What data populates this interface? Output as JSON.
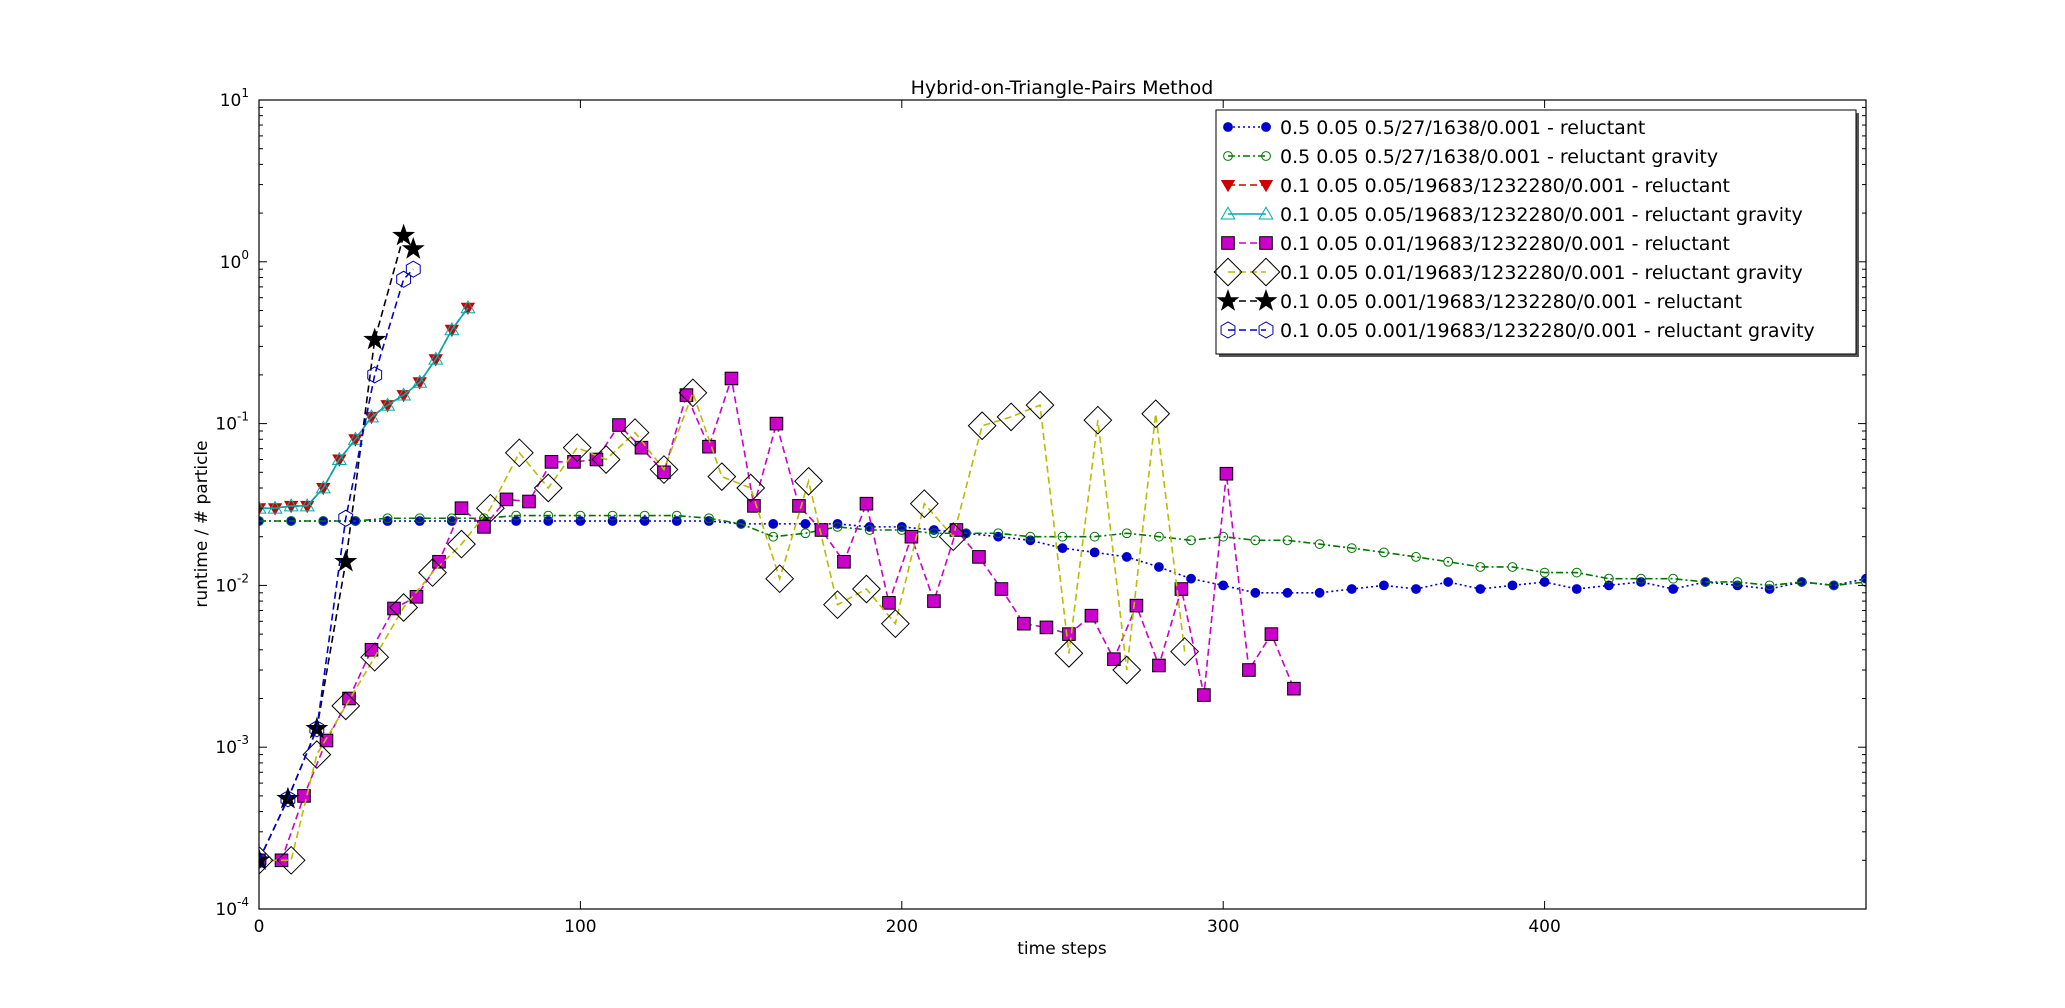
{
  "chart_data": {
    "type": "line",
    "title": "Hybrid-on-Triangle-Pairs Method",
    "xlabel": "time steps",
    "ylabel": "runtime / # particle",
    "xlim": [
      0,
      500
    ],
    "ylim": [
      0.0001,
      10
    ],
    "yscale": "log",
    "x_ticks": [
      {
        "value": 0,
        "label": "0"
      },
      {
        "value": 100,
        "label": "100"
      },
      {
        "value": 200,
        "label": "200"
      },
      {
        "value": 300,
        "label": "300"
      },
      {
        "value": 400,
        "label": "400"
      }
    ],
    "y_ticks": [
      {
        "value": 0.0001,
        "base": "10",
        "exp": "-4"
      },
      {
        "value": 0.001,
        "base": "10",
        "exp": "-3"
      },
      {
        "value": 0.01,
        "base": "10",
        "exp": "-2"
      },
      {
        "value": 0.1,
        "base": "10",
        "exp": "-1"
      },
      {
        "value": 1,
        "base": "10",
        "exp": "0"
      },
      {
        "value": 10,
        "base": "10",
        "exp": "1"
      }
    ],
    "grid": false,
    "legend_position": "top-right",
    "series": [
      {
        "name": "0.5 0.05 0.5/27/1638/0.001 - reluctant",
        "color": "#0000cc",
        "linestyle": "dotted",
        "marker": "circle-filled",
        "x": [
          0,
          10,
          20,
          30,
          40,
          50,
          60,
          70,
          80,
          90,
          100,
          110,
          120,
          130,
          140,
          150,
          160,
          170,
          180,
          190,
          200,
          210,
          220,
          230,
          240,
          250,
          260,
          270,
          280,
          290,
          300,
          310,
          320,
          330,
          340,
          350,
          360,
          370,
          380,
          390,
          400,
          410,
          420,
          430,
          440,
          450,
          460,
          470,
          480,
          490,
          500
        ],
        "y": [
          0.025,
          0.025,
          0.025,
          0.025,
          0.025,
          0.025,
          0.025,
          0.025,
          0.025,
          0.025,
          0.025,
          0.025,
          0.025,
          0.025,
          0.025,
          0.024,
          0.024,
          0.024,
          0.024,
          0.023,
          0.023,
          0.022,
          0.021,
          0.02,
          0.019,
          0.017,
          0.016,
          0.015,
          0.013,
          0.011,
          0.01,
          0.009,
          0.009,
          0.009,
          0.0095,
          0.01,
          0.0095,
          0.0105,
          0.0095,
          0.01,
          0.0105,
          0.0095,
          0.01,
          0.0105,
          0.0095,
          0.0105,
          0.01,
          0.0095,
          0.0105,
          0.01,
          0.011
        ]
      },
      {
        "name": "0.5 0.05 0.5/27/1638/0.001 - reluctant gravity",
        "color": "#007700",
        "linestyle": "dashdot",
        "marker": "circle-open",
        "x": [
          0,
          10,
          20,
          30,
          40,
          50,
          60,
          70,
          80,
          90,
          100,
          110,
          120,
          130,
          140,
          150,
          160,
          170,
          180,
          190,
          200,
          210,
          220,
          230,
          240,
          250,
          260,
          270,
          280,
          290,
          300,
          310,
          320,
          330,
          340,
          350,
          360,
          370,
          380,
          390,
          400,
          410,
          420,
          430,
          440,
          450,
          460,
          470,
          480,
          490,
          500
        ],
        "y": [
          0.025,
          0.025,
          0.025,
          0.025,
          0.026,
          0.026,
          0.026,
          0.026,
          0.027,
          0.027,
          0.027,
          0.027,
          0.027,
          0.027,
          0.026,
          0.024,
          0.02,
          0.021,
          0.023,
          0.022,
          0.022,
          0.021,
          0.021,
          0.021,
          0.02,
          0.02,
          0.02,
          0.021,
          0.02,
          0.019,
          0.02,
          0.019,
          0.019,
          0.018,
          0.017,
          0.016,
          0.015,
          0.014,
          0.013,
          0.013,
          0.012,
          0.012,
          0.011,
          0.011,
          0.011,
          0.0105,
          0.0105,
          0.01,
          0.0105,
          0.01,
          0.0105
        ]
      },
      {
        "name": "0.1 0.05 0.05/19683/1232280/0.001 - reluctant",
        "color": "#cc0000",
        "linestyle": "dashed",
        "marker": "triangle-down-filled",
        "x": [
          0,
          5,
          10,
          15,
          20,
          25,
          30,
          35,
          40,
          45,
          50,
          55,
          60,
          65
        ],
        "y": [
          0.03,
          0.03,
          0.031,
          0.031,
          0.04,
          0.06,
          0.08,
          0.11,
          0.13,
          0.15,
          0.18,
          0.25,
          0.38,
          0.52
        ]
      },
      {
        "name": "0.1 0.05 0.05/19683/1232280/0.001 - reluctant gravity",
        "color": "#00aaaa",
        "linestyle": "solid",
        "marker": "triangle-up-open",
        "x": [
          0,
          5,
          10,
          15,
          20,
          25,
          30,
          35,
          40,
          45,
          50,
          55,
          60,
          65
        ],
        "y": [
          0.03,
          0.03,
          0.031,
          0.031,
          0.04,
          0.06,
          0.08,
          0.11,
          0.13,
          0.15,
          0.18,
          0.25,
          0.38,
          0.52
        ]
      },
      {
        "name": "0.1 0.05 0.01/19683/1232280/0.001 - reluctant",
        "color": "#cc00cc",
        "linestyle": "dashed",
        "marker": "square-filled",
        "x": [
          0,
          7,
          14,
          21,
          28,
          35,
          42,
          49,
          56,
          63,
          70,
          77,
          84,
          91,
          98,
          105,
          112,
          119,
          126,
          133,
          140,
          147,
          154,
          161,
          168,
          175,
          182,
          189,
          196,
          203,
          210,
          217,
          224,
          231,
          238,
          245,
          252,
          259,
          266,
          273,
          280,
          287,
          294,
          301,
          308,
          315,
          322
        ],
        "y": [
          0.0002,
          0.0002,
          0.0005,
          0.0011,
          0.002,
          0.004,
          0.0072,
          0.0085,
          0.014,
          0.03,
          0.023,
          0.034,
          0.033,
          0.058,
          0.058,
          0.06,
          0.098,
          0.071,
          0.05,
          0.15,
          0.072,
          0.19,
          0.031,
          0.1,
          0.031,
          0.022,
          0.014,
          0.032,
          0.0078,
          0.02,
          0.008,
          0.022,
          0.015,
          0.0095,
          0.0058,
          0.0055,
          0.005,
          0.0065,
          0.0035,
          0.0075,
          0.0032,
          0.0095,
          0.0021,
          0.049,
          0.003,
          0.005,
          0.0023
        ]
      },
      {
        "name": "0.1 0.05 0.01/19683/1232280/0.001 - reluctant gravity",
        "color": "#bbbb00",
        "linestyle": "dashed",
        "marker": "diamond-open",
        "x": [
          0,
          10,
          18,
          27,
          36,
          45,
          54,
          63,
          72,
          81,
          90,
          99,
          108,
          117,
          126,
          135,
          144,
          153,
          162,
          171,
          180,
          189,
          198,
          207,
          216,
          225,
          234,
          243,
          252,
          261,
          270,
          279,
          288
        ],
        "y": [
          0.0002,
          0.0002,
          0.0009,
          0.0018,
          0.0036,
          0.0073,
          0.012,
          0.018,
          0.03,
          0.066,
          0.04,
          0.071,
          0.06,
          0.088,
          0.052,
          0.155,
          0.047,
          0.04,
          0.011,
          0.044,
          0.0076,
          0.0095,
          0.0058,
          0.032,
          0.02,
          0.097,
          0.11,
          0.13,
          0.0038,
          0.105,
          0.003,
          0.115,
          0.0039
        ]
      },
      {
        "name": "0.1 0.05 0.001/19683/1232280/0.001 - reluctant",
        "color": "#000000",
        "linestyle": "dashed",
        "marker": "star-filled",
        "x": [
          0,
          9,
          18,
          27,
          36,
          45,
          48
        ],
        "y": [
          0.0002,
          0.00048,
          0.0013,
          0.014,
          0.33,
          1.45,
          1.2
        ]
      },
      {
        "name": "0.1 0.05 0.001/19683/1232280/0.001 - reluctant gravity",
        "color": "#0000cc",
        "linestyle": "dashed",
        "marker": "hexagon-open",
        "x": [
          0,
          9,
          18,
          27,
          36,
          45,
          48
        ],
        "y": [
          0.0002,
          0.00048,
          0.0013,
          0.026,
          0.2,
          0.78,
          0.9
        ]
      }
    ]
  }
}
